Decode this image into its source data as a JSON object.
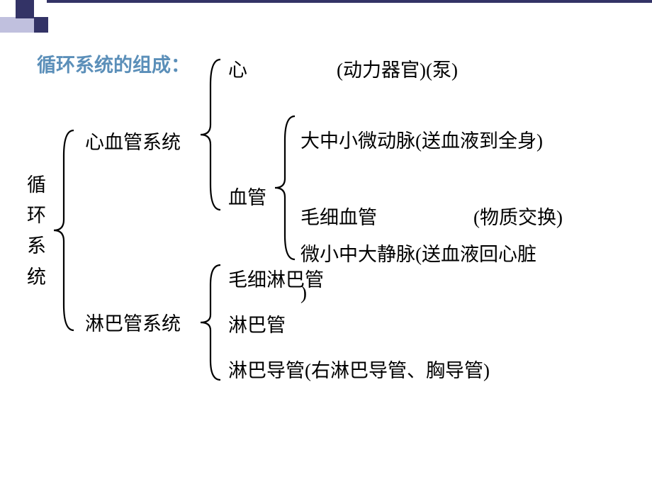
{
  "deco": {
    "colors": {
      "dark": "#333366",
      "mid": "#6666a0",
      "light": "#c0c0de"
    }
  },
  "title": {
    "text": "循环系统的组成：",
    "color": "#5b8fb9"
  },
  "root": {
    "label": "循环系统"
  },
  "cardio": {
    "label": "心血管系统",
    "heart": "心",
    "heart_note": "(动力器官)(泵)",
    "vessel": "血管",
    "artery": "大中小微动脉(送血液到全身)",
    "capillary": "毛细血管",
    "capillary_note": "(物质交换)",
    "vein": "微小中大静脉(送血液回心脏",
    "vein_tail": ")"
  },
  "lymph": {
    "label": "淋巴管系统",
    "cap": "毛细淋巴管",
    "vessel": "淋巴管",
    "duct": "淋巴导管(右淋巴导管、胸导管)"
  },
  "brace_color": "#000000"
}
